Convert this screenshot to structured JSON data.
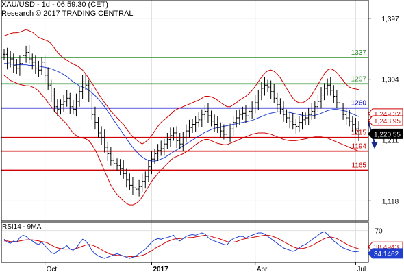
{
  "header": {
    "title": "XAU/USD - 1d - 06:59:30 (CET)",
    "subtitle": "Research © 2017 TRADING CENTRAL"
  },
  "colors": {
    "grid": "#e0e0e0",
    "price": "#000000",
    "bollinger": "#d00000",
    "ma": "#1f3fd0",
    "green_level": "#2e8b2e",
    "red_level": "#d00000",
    "blue_level": "#0000cc",
    "tag_last": "#000000",
    "tag_red": "#d00000",
    "rsi": "#1f3fd0",
    "rsi_ma": "#d00000",
    "arrow": "#1a2a8a"
  },
  "chart_data": [
    {
      "type": "line",
      "title": "XAU/USD - 1d",
      "y_axis_ticks": [
        "1,397",
        "1,304",
        "1,211",
        "1,118"
      ],
      "y_axis_values": [
        1397,
        1304,
        1211,
        1118
      ],
      "ylim": [
        1088,
        1425
      ],
      "x_axis_labels": [
        "Oct",
        "2017",
        "Apr",
        "Jul"
      ],
      "x_axis_index": [
        13,
        47,
        80,
        112
      ],
      "levels": [
        {
          "label": "1337",
          "value": 1337,
          "color": "green"
        },
        {
          "label": "1297",
          "value": 1297,
          "color": "green"
        },
        {
          "label": "1260",
          "value": 1260,
          "color": "blue"
        },
        {
          "label": "1215",
          "value": 1215,
          "color": "red"
        },
        {
          "label": "1194",
          "value": 1194,
          "color": "red"
        },
        {
          "label": "1165",
          "value": 1165,
          "color": "red"
        }
      ],
      "price_tags": [
        {
          "label": "1,249.32",
          "value": 1249.32,
          "style": "red-outline"
        },
        {
          "label": "1,243.95",
          "value": 1243.95,
          "style": "red-outline"
        },
        {
          "label": "1,220.55",
          "value": 1220.55,
          "style": "black"
        }
      ],
      "forecast_arrow": {
        "from_index": 116,
        "to_index": 118,
        "from_value": 1240,
        "to_value": 1200
      },
      "series": [
        {
          "name": "",
          "role": "price",
          "values": [
            1342,
            1330,
            1335,
            1325,
            1320,
            1328,
            1340,
            1345,
            1335,
            1330,
            1320,
            1318,
            1330,
            1310,
            1295,
            1280,
            1262,
            1258,
            1265,
            1270,
            1275,
            1262,
            1258,
            1270,
            1285,
            1300,
            1295,
            1280,
            1250,
            1238,
            1222,
            1215,
            1200,
            1190,
            1180,
            1175,
            1172,
            1168,
            1160,
            1150,
            1142,
            1138,
            1136,
            1140,
            1148,
            1155,
            1170,
            1182,
            1190,
            1195,
            1198,
            1205,
            1212,
            1218,
            1222,
            1210,
            1205,
            1215,
            1225,
            1230,
            1235,
            1238,
            1242,
            1250,
            1255,
            1248,
            1240,
            1235,
            1230,
            1225,
            1220,
            1215,
            1228,
            1238,
            1245,
            1250,
            1252,
            1248,
            1255,
            1260,
            1268,
            1280,
            1290,
            1295,
            1292,
            1285,
            1275,
            1265,
            1258,
            1250,
            1245,
            1240,
            1235,
            1232,
            1238,
            1242,
            1245,
            1250,
            1255,
            1262,
            1270,
            1280,
            1290,
            1295,
            1287,
            1278,
            1268,
            1260,
            1250,
            1245,
            1240,
            1235,
            1228,
            1220.55
          ]
        },
        {
          "name": "",
          "role": "ma",
          "values": [
            1328,
            1328,
            1327,
            1327,
            1326,
            1326,
            1326,
            1326,
            1325,
            1325,
            1324,
            1324,
            1323,
            1322,
            1321,
            1320,
            1318,
            1316,
            1314,
            1311,
            1308,
            1304,
            1300,
            1297,
            1294,
            1292,
            1290,
            1287,
            1283,
            1279,
            1274,
            1268,
            1262,
            1255,
            1248,
            1241,
            1234,
            1227,
            1220,
            1213,
            1206,
            1200,
            1194,
            1189,
            1185,
            1182,
            1180,
            1179,
            1179,
            1180,
            1182,
            1184,
            1187,
            1190,
            1193,
            1196,
            1199,
            1202,
            1205,
            1208,
            1211,
            1214,
            1217,
            1220,
            1223,
            1225,
            1227,
            1229,
            1230,
            1231,
            1232,
            1233,
            1234,
            1235,
            1236,
            1237,
            1238,
            1239,
            1240,
            1241,
            1243,
            1245,
            1247,
            1249,
            1251,
            1252,
            1253,
            1254,
            1254,
            1254,
            1254,
            1253,
            1252,
            1251,
            1250,
            1249,
            1248,
            1248,
            1248,
            1249,
            1250,
            1252,
            1254,
            1256,
            1257,
            1258,
            1258,
            1257,
            1256,
            1255,
            1253,
            1251,
            1249,
            1247
          ]
        },
        {
          "name": "",
          "role": "bb_upper",
          "values": [
            1370,
            1372,
            1374,
            1375,
            1375,
            1376,
            1378,
            1380,
            1378,
            1376,
            1372,
            1368,
            1366,
            1364,
            1362,
            1358,
            1352,
            1345,
            1340,
            1336,
            1333,
            1330,
            1327,
            1325,
            1322,
            1318,
            1312,
            1305,
            1298,
            1290,
            1282,
            1275,
            1268,
            1262,
            1255,
            1250,
            1245,
            1240,
            1235,
            1228,
            1222,
            1216,
            1212,
            1208,
            1205,
            1208,
            1212,
            1218,
            1225,
            1232,
            1238,
            1242,
            1246,
            1250,
            1255,
            1258,
            1260,
            1262,
            1264,
            1266,
            1268,
            1270,
            1272,
            1275,
            1278,
            1278,
            1277,
            1275,
            1272,
            1268,
            1265,
            1262,
            1262,
            1265,
            1268,
            1272,
            1275,
            1278,
            1282,
            1287,
            1293,
            1300,
            1307,
            1313,
            1317,
            1318,
            1316,
            1312,
            1306,
            1298,
            1290,
            1282,
            1275,
            1270,
            1268,
            1268,
            1270,
            1274,
            1280,
            1288,
            1296,
            1304,
            1312,
            1318,
            1320,
            1318,
            1314,
            1308,
            1302,
            1296,
            1292,
            1290,
            1289,
            1288
          ]
        },
        {
          "name": "",
          "role": "bb_lower",
          "values": [
            1310,
            1306,
            1302,
            1300,
            1298,
            1296,
            1295,
            1294,
            1294,
            1292,
            1290,
            1286,
            1280,
            1275,
            1268,
            1262,
            1256,
            1250,
            1245,
            1240,
            1235,
            1228,
            1222,
            1218,
            1215,
            1214,
            1213,
            1210,
            1204,
            1196,
            1186,
            1175,
            1164,
            1153,
            1142,
            1134,
            1128,
            1123,
            1118,
            1114,
            1112,
            1112,
            1114,
            1118,
            1124,
            1132,
            1140,
            1148,
            1154,
            1160,
            1165,
            1170,
            1175,
            1180,
            1184,
            1186,
            1188,
            1190,
            1193,
            1196,
            1200,
            1204,
            1207,
            1210,
            1212,
            1212,
            1210,
            1208,
            1206,
            1205,
            1204,
            1204,
            1206,
            1208,
            1210,
            1212,
            1214,
            1216,
            1218,
            1220,
            1221,
            1222,
            1222,
            1222,
            1221,
            1220,
            1218,
            1216,
            1214,
            1212,
            1211,
            1210,
            1210,
            1210,
            1211,
            1212,
            1213,
            1214,
            1215,
            1216,
            1216,
            1216,
            1215,
            1214,
            1212,
            1210,
            1208,
            1206,
            1204,
            1202,
            1200,
            1198,
            1196,
            1194
          ]
        }
      ]
    },
    {
      "type": "line",
      "title": "RSI14 - 9MA",
      "y_axis_ticks": [
        "70"
      ],
      "y_axis_values": [
        70
      ],
      "ylim": [
        15,
        85
      ],
      "price_tags": [
        {
          "label": "38.4943",
          "value": 38.4943,
          "style": "red-outline"
        },
        {
          "label": "34.1462",
          "value": 34.1462,
          "style": "blue"
        }
      ],
      "series": [
        {
          "name": "",
          "role": "rsi",
          "values": [
            55,
            50,
            48,
            52,
            50,
            58,
            62,
            60,
            55,
            52,
            48,
            46,
            50,
            44,
            38,
            32,
            30,
            34,
            38,
            40,
            44,
            38,
            36,
            40,
            48,
            55,
            52,
            45,
            35,
            30,
            26,
            24,
            22,
            24,
            26,
            28,
            30,
            28,
            26,
            24,
            22,
            24,
            26,
            30,
            34,
            38,
            44,
            50,
            54,
            56,
            55,
            57,
            58,
            60,
            62,
            55,
            52,
            56,
            60,
            62,
            63,
            62,
            64,
            66,
            64,
            58,
            54,
            52,
            50,
            48,
            46,
            45,
            52,
            56,
            58,
            60,
            60,
            57,
            60,
            62,
            64,
            66,
            66,
            64,
            60,
            56,
            52,
            48,
            44,
            40,
            38,
            36,
            34,
            36,
            40,
            44,
            46,
            50,
            54,
            58,
            62,
            66,
            68,
            64,
            58,
            52,
            48,
            44,
            40,
            38,
            36,
            34,
            33,
            34.1462
          ]
        },
        {
          "name": "",
          "role": "rsi_ma",
          "values": [
            52,
            52,
            51,
            51,
            51,
            52,
            53,
            54,
            54,
            54,
            53,
            52,
            51,
            50,
            48,
            45,
            42,
            40,
            39,
            38,
            38,
            38,
            38,
            39,
            41,
            43,
            45,
            46,
            45,
            43,
            40,
            37,
            34,
            31,
            29,
            28,
            27,
            27,
            26,
            26,
            25,
            25,
            25,
            26,
            27,
            29,
            32,
            35,
            39,
            42,
            45,
            48,
            51,
            53,
            55,
            56,
            56,
            57,
            57,
            58,
            58,
            59,
            60,
            61,
            62,
            61,
            60,
            58,
            57,
            55,
            53,
            51,
            50,
            50,
            51,
            53,
            55,
            56,
            57,
            58,
            59,
            60,
            61,
            62,
            62,
            61,
            59,
            57,
            54,
            51,
            48,
            45,
            42,
            40,
            39,
            39,
            40,
            42,
            44,
            47,
            50,
            53,
            56,
            58,
            59,
            58,
            56,
            53,
            50,
            47,
            44,
            42,
            40,
            38.4943
          ]
        }
      ]
    }
  ]
}
